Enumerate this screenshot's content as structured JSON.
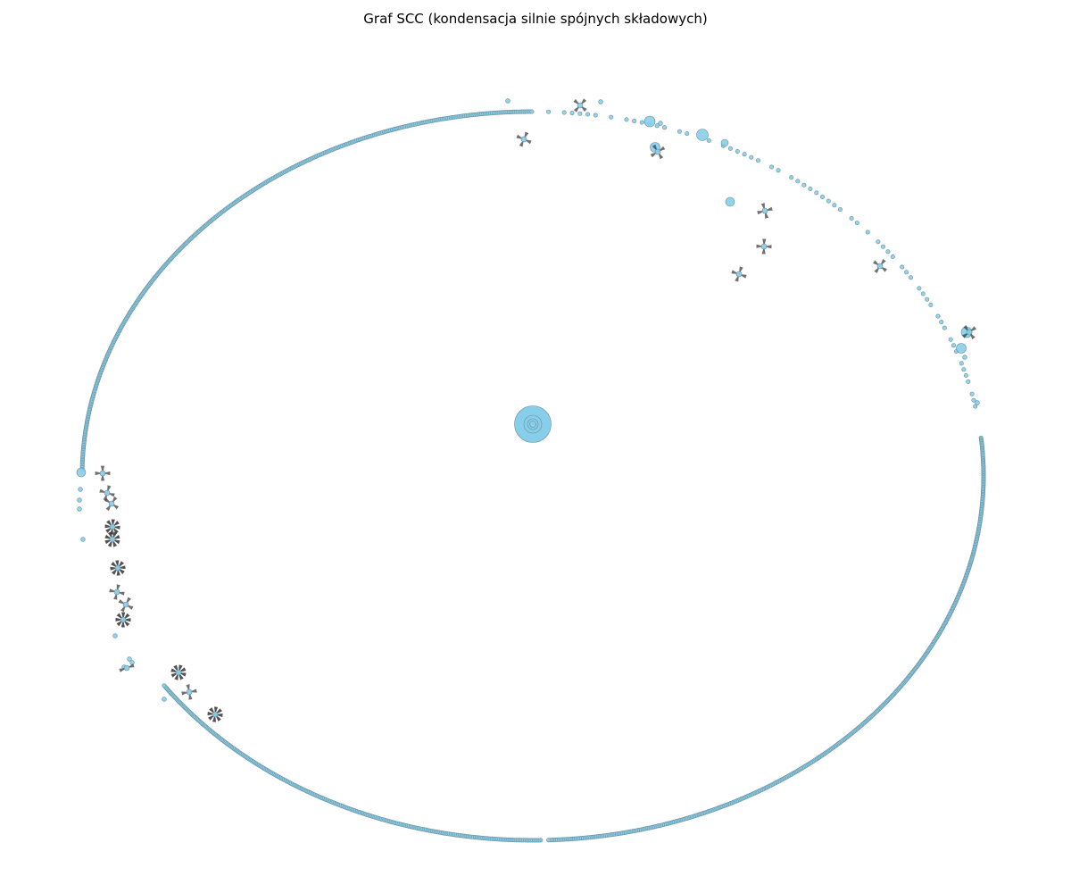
{
  "title": "Graf SCC (kondensacja silnie spójnych składowych)",
  "colors": {
    "node_fill": "#87ceeb",
    "node_stroke": "#6b8e9a",
    "edge": "#333333",
    "background": "#ffffff"
  },
  "graph": {
    "layout": "ring",
    "central_node_count": 1,
    "ring_node_estimate": 1500,
    "singleton_node_estimate": 40,
    "small_component_estimate": 28
  }
}
